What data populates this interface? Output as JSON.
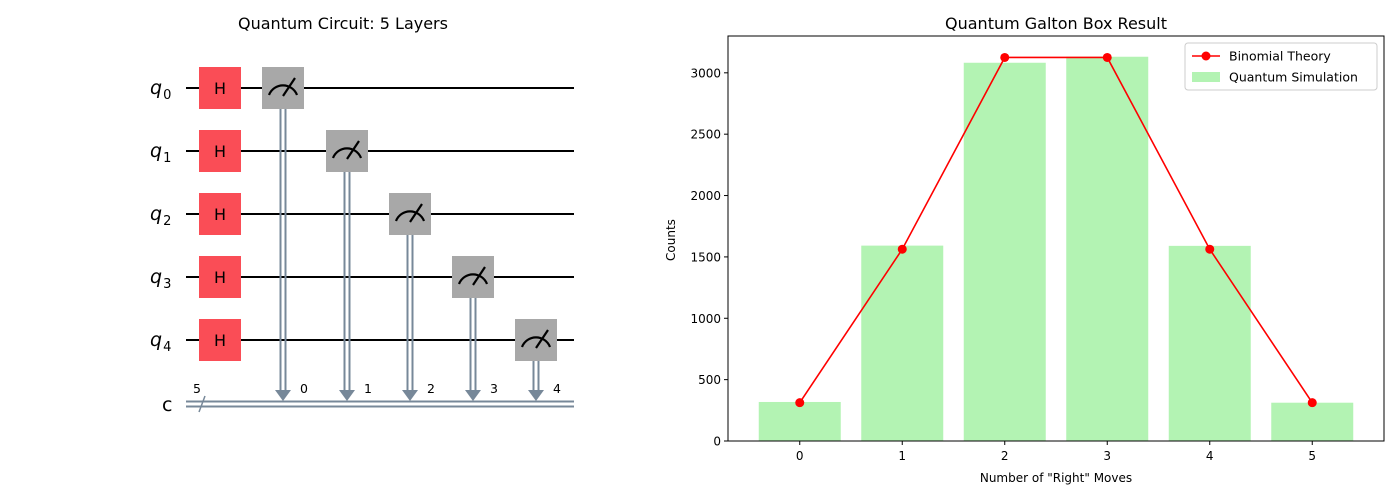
{
  "figure": {
    "circuit_panel": {
      "title": "Quantum Circuit: 5 Layers",
      "qubits": [
        {
          "name": "q",
          "index": "0"
        },
        {
          "name": "q",
          "index": "1"
        },
        {
          "name": "q",
          "index": "2"
        },
        {
          "name": "q",
          "index": "3"
        },
        {
          "name": "q",
          "index": "4"
        }
      ],
      "gate_label": "H",
      "classical_register": {
        "name": "c",
        "size": "5"
      },
      "measurement_targets": [
        "0",
        "1",
        "2",
        "3",
        "4"
      ],
      "colors": {
        "h_gate": "#fa4d56",
        "measure_gate": "#a8a8a8",
        "wire": "#000000",
        "classical_wire": "#778899"
      }
    },
    "chart_panel": {
      "chart_data": {
        "type": "bar",
        "title": "Quantum Galton Box Result",
        "xlabel": "Number of \"Right\" Moves",
        "ylabel": "Counts",
        "categories": [
          "0",
          "1",
          "2",
          "3",
          "4",
          "5"
        ],
        "x": [
          0,
          1,
          2,
          3,
          4,
          5
        ],
        "series": [
          {
            "name": "Quantum Simulation",
            "type": "bar",
            "color": "#b3f3b3",
            "values": [
              318,
              1592,
              3082,
              3131,
              1590,
              312
            ]
          },
          {
            "name": "Binomial Theory",
            "type": "line",
            "color": "#ff0000",
            "marker": "circle",
            "values": [
              312.5,
              1562.5,
              3125,
              3125,
              1562.5,
              312.5
            ]
          }
        ],
        "ylim": [
          0,
          3300
        ],
        "yticks": [
          0,
          500,
          1000,
          1500,
          2000,
          2500,
          3000
        ],
        "xlim": [
          -0.7,
          5.7
        ],
        "legend": {
          "placement": "top-right",
          "entries": [
            "Binomial Theory",
            "Quantum Simulation"
          ]
        },
        "grid": false
      }
    }
  }
}
